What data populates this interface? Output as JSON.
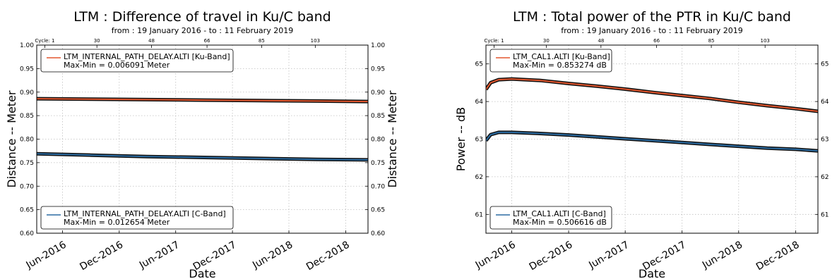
{
  "chart_data": [
    {
      "type": "line",
      "title": "LTM : Difference of travel in Ku/C band",
      "subtitle": "from : 19 January 2016  -  to : 11 February 2019",
      "xlabel": "Date",
      "ylabel": "Distance -- Meter",
      "ylabel_right": "Distance -- Meter",
      "ylim": [
        0.6,
        1.0
      ],
      "yticks": [
        "0.60",
        "0.65",
        "0.70",
        "0.75",
        "0.80",
        "0.85",
        "0.90",
        "0.95",
        "1.00"
      ],
      "xlim": [
        "2016-03-10",
        "2019-02-11"
      ],
      "xticks": [
        {
          "date": "2016-06-01",
          "label": "Jun-2016"
        },
        {
          "date": "2016-12-01",
          "label": "Dec-2016"
        },
        {
          "date": "2017-06-01",
          "label": "Jun-2017"
        },
        {
          "date": "2017-12-01",
          "label": "Dec-2017"
        },
        {
          "date": "2018-06-01",
          "label": "Jun-2018"
        },
        {
          "date": "2018-12-01",
          "label": "Dec-2018"
        }
      ],
      "cycle_label": "Cycle:",
      "top_cycles": [
        {
          "date": "2016-04-05",
          "label": "1"
        },
        {
          "date": "2016-09-20",
          "label": "30"
        },
        {
          "date": "2017-03-15",
          "label": "48"
        },
        {
          "date": "2017-09-10",
          "label": "66"
        },
        {
          "date": "2018-03-05",
          "label": "85"
        },
        {
          "date": "2018-08-25",
          "label": "103"
        }
      ],
      "grid": true,
      "series": [
        {
          "name": "LTM_INTERNAL_PATH_DELAY.ALTI [Ku-Band]",
          "legend_line2": "Max-Min = 0.006091 Meter",
          "legend_position": "top-left",
          "color": "#e4572e",
          "x": [
            "2016-03-10",
            "2016-09-01",
            "2017-03-01",
            "2017-09-01",
            "2018-03-01",
            "2018-09-01",
            "2019-02-11"
          ],
          "values": [
            0.886,
            0.885,
            0.884,
            0.883,
            0.882,
            0.881,
            0.88
          ]
        },
        {
          "name": "LTM_INTERNAL_PATH_DELAY.ALTI [C-Band]",
          "legend_line2": "Max-Min = 0.012654 Meter",
          "legend_position": "bottom-left",
          "color": "#2b6ca3",
          "x": [
            "2016-03-10",
            "2016-09-01",
            "2017-03-01",
            "2017-09-01",
            "2018-03-01",
            "2018-09-01",
            "2019-02-11"
          ],
          "values": [
            0.769,
            0.766,
            0.763,
            0.761,
            0.759,
            0.757,
            0.756
          ]
        }
      ]
    },
    {
      "type": "line",
      "title": "LTM : Total power of the PTR in Ku/C band",
      "subtitle": "from : 19 January 2016  -  to : 11 February 2019",
      "xlabel": "Date",
      "ylabel": "Power -- dB",
      "ylabel_right": "Power -- dB",
      "ylim": [
        60.5,
        65.5
      ],
      "yticks": [
        "61",
        "62",
        "63",
        "64",
        "65"
      ],
      "xlim": [
        "2016-03-10",
        "2019-02-11"
      ],
      "xticks": [
        {
          "date": "2016-06-01",
          "label": "Jun-2016"
        },
        {
          "date": "2016-12-01",
          "label": "Dec-2016"
        },
        {
          "date": "2017-06-01",
          "label": "Jun-2017"
        },
        {
          "date": "2017-12-01",
          "label": "Dec-2017"
        },
        {
          "date": "2018-06-01",
          "label": "Jun-2018"
        },
        {
          "date": "2018-12-01",
          "label": "Dec-2018"
        }
      ],
      "cycle_label": "Cycle:",
      "top_cycles": [
        {
          "date": "2016-04-05",
          "label": "1"
        },
        {
          "date": "2016-09-20",
          "label": "30"
        },
        {
          "date": "2017-03-15",
          "label": "48"
        },
        {
          "date": "2017-09-10",
          "label": "66"
        },
        {
          "date": "2018-03-05",
          "label": "85"
        },
        {
          "date": "2018-08-25",
          "label": "103"
        }
      ],
      "grid": true,
      "series": [
        {
          "name": "LTM_CAL1.ALTI [Ku-Band]",
          "legend_line2": "Max-Min = 0.853274 dB",
          "legend_position": "top-left",
          "color": "#e4572e",
          "x": [
            "2016-03-10",
            "2016-03-25",
            "2016-04-20",
            "2016-06-01",
            "2016-09-01",
            "2016-12-01",
            "2017-03-01",
            "2017-06-01",
            "2017-09-01",
            "2017-12-01",
            "2018-03-01",
            "2018-06-01",
            "2018-09-01",
            "2018-12-01",
            "2019-02-11"
          ],
          "values": [
            64.32,
            64.5,
            64.58,
            64.6,
            64.56,
            64.48,
            64.41,
            64.33,
            64.24,
            64.16,
            64.08,
            63.98,
            63.89,
            63.81,
            63.74
          ]
        },
        {
          "name": "LTM_CAL1.ALTI [C-Band]",
          "legend_line2": "Max-Min = 0.506616 dB",
          "legend_position": "bottom-left",
          "color": "#2b6ca3",
          "x": [
            "2016-03-10",
            "2016-03-25",
            "2016-04-20",
            "2016-06-01",
            "2016-09-01",
            "2016-12-01",
            "2017-03-01",
            "2017-06-01",
            "2017-09-01",
            "2017-12-01",
            "2018-03-01",
            "2018-06-01",
            "2018-09-01",
            "2018-12-01",
            "2019-02-11"
          ],
          "values": [
            62.96,
            63.12,
            63.18,
            63.18,
            63.15,
            63.11,
            63.06,
            63.01,
            62.96,
            62.91,
            62.86,
            62.81,
            62.76,
            62.73,
            62.69
          ]
        }
      ]
    }
  ]
}
